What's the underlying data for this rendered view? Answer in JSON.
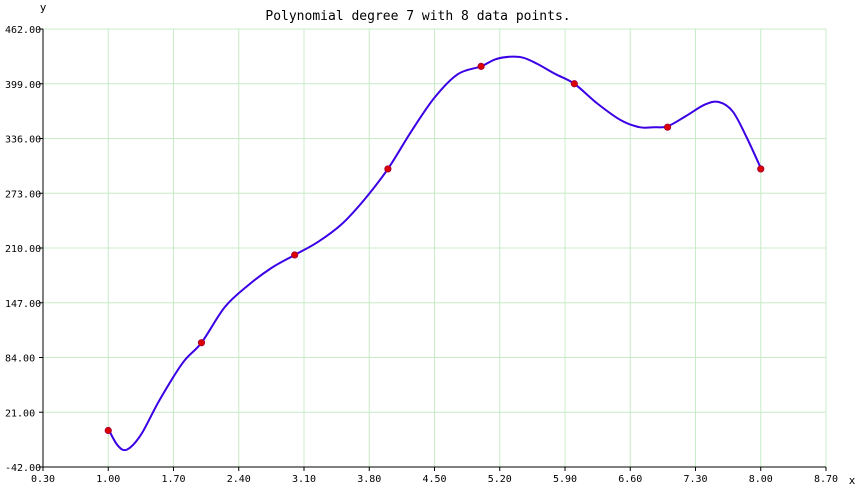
{
  "chart_data": {
    "type": "line",
    "title": "Polynomial degree 7 with 8 data points.",
    "xlabel": "x",
    "ylabel": "y",
    "xlim": [
      0.3,
      8.7
    ],
    "ylim": [
      -42,
      462
    ],
    "x_ticks": [
      "0.30",
      "1.00",
      "1.70",
      "2.40",
      "3.10",
      "3.80",
      "4.50",
      "5.20",
      "5.90",
      "6.60",
      "7.30",
      "8.00",
      "8.70"
    ],
    "y_ticks": [
      "462.00",
      "399.00",
      "336.00",
      "273.00",
      "210.00",
      "147.00",
      "84.00",
      "21.00",
      "-42.00"
    ],
    "grid": true,
    "colors": {
      "grid": "#c8ecc8",
      "curve": "#3b00e6",
      "points": "#dd0000",
      "axis": "#000000"
    },
    "series": [
      {
        "type": "scatter",
        "x": [
          1,
          2,
          3,
          4,
          5,
          6,
          7,
          8
        ],
        "y": [
          0,
          101,
          202,
          301,
          419,
          399,
          349,
          301
        ]
      },
      {
        "type": "line",
        "x": [
          1,
          1.1,
          1.2,
          1.35,
          1.55,
          1.8,
          2,
          2.25,
          2.5,
          2.75,
          3,
          3.25,
          3.5,
          3.75,
          4,
          4.25,
          4.5,
          4.75,
          5,
          5.15,
          5.3,
          5.45,
          5.6,
          5.8,
          6,
          6.25,
          6.5,
          6.7,
          6.85,
          7,
          7.2,
          7.4,
          7.55,
          7.7,
          7.85,
          8
        ],
        "y": [
          2,
          -17,
          -22,
          -5,
          35,
          78,
          101,
          142,
          167,
          187,
          202,
          217,
          237,
          266,
          301,
          344,
          383,
          410,
          419,
          427,
          430,
          429,
          422,
          410,
          399,
          376,
          357,
          349,
          349,
          350,
          362,
          375,
          378,
          367,
          337,
          302
        ]
      }
    ]
  }
}
